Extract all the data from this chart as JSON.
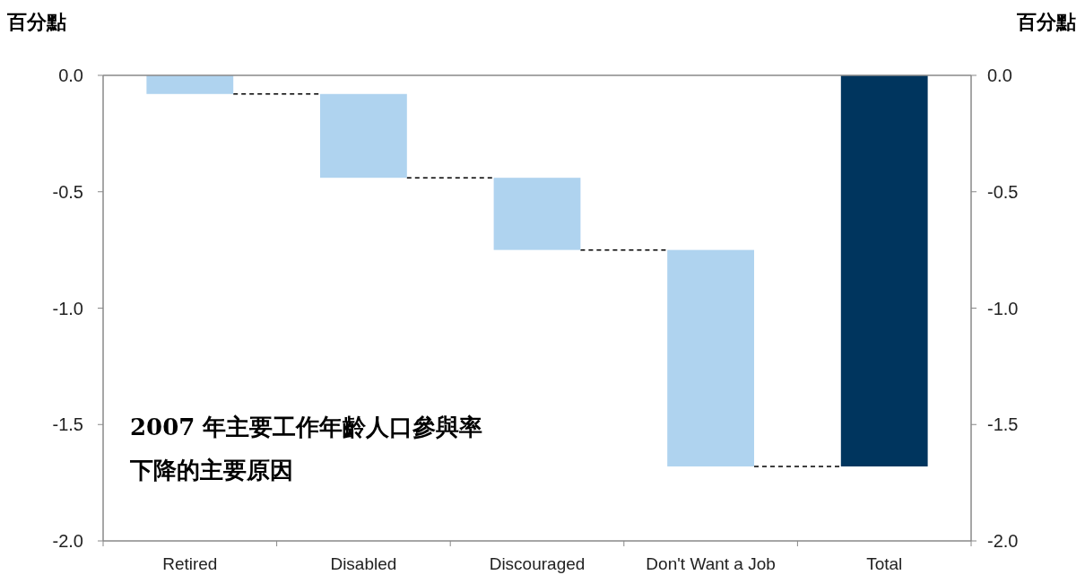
{
  "chart_data": {
    "type": "bar",
    "ylabel": "百分點",
    "y2label": "百分點",
    "categories": [
      "Retired",
      "Disabled",
      "Discouraged",
      "Don't Want a Job",
      "Total"
    ],
    "values": [
      -0.08,
      -0.36,
      -0.31,
      -0.93,
      -1.68
    ],
    "base": [
      0,
      -0.08,
      -0.44,
      -0.75,
      0
    ],
    "colors": [
      "#afd3ef",
      "#afd3ef",
      "#afd3ef",
      "#afd3ef",
      "#00355e"
    ],
    "ylim": [
      -2.0,
      0.0
    ],
    "yticks": [
      {
        "value": 0,
        "label": "0.0"
      },
      -0.5,
      {
        "value": -1,
        "label": "-1.0"
      },
      -1.5,
      {
        "value": -2,
        "label": "-2.0"
      }
    ],
    "y2lim": [
      -2.0,
      0.0
    ],
    "y2ticks": [
      {
        "value": 0,
        "label": "0.0"
      },
      -0.5,
      {
        "value": -1,
        "label": "-1.0"
      },
      -1.5,
      {
        "value": -2,
        "label": "-2.0"
      }
    ],
    "annotations": [
      "2007 年主要工作年齡人口參與率下降的主要原因"
    ],
    "grid": false
  }
}
